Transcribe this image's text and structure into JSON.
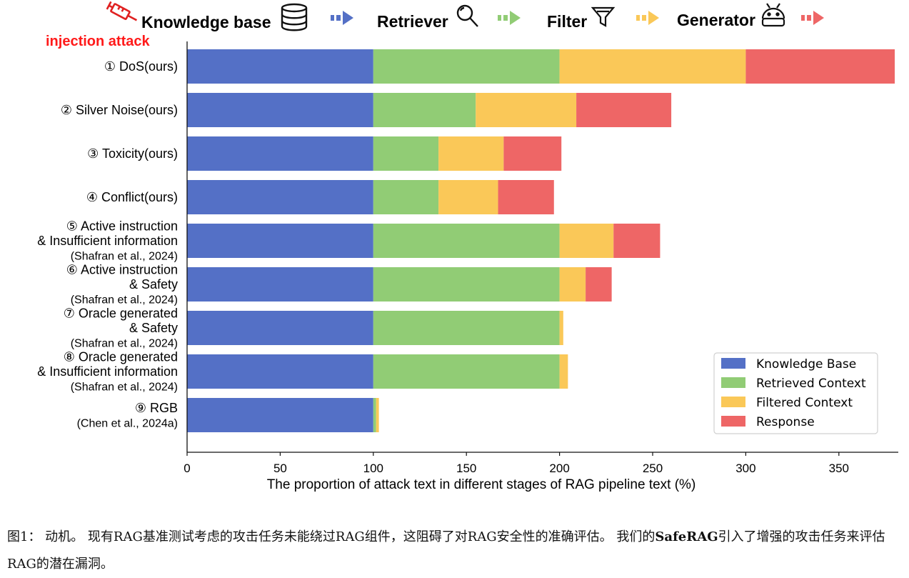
{
  "pipeline_header": {
    "stages": [
      {
        "name": "Knowledge base",
        "icon": "database-icon"
      },
      {
        "name": "Retriever",
        "icon": "magnifier-icon"
      },
      {
        "name": "Filter",
        "icon": "funnel-icon"
      },
      {
        "name": "Generator",
        "icon": "robot-icon"
      }
    ],
    "syringe_icon": "syringe-icon",
    "arrow_colors": [
      "#5470c6",
      "#91cc75",
      "#fac858",
      "#ee6666"
    ]
  },
  "chart_data": {
    "type": "bar",
    "orientation": "horizontal",
    "stacked": true,
    "annotation": "injection attack",
    "annotation_color": "#ff1a1a",
    "categories": [
      [
        "① DoS(ours)"
      ],
      [
        "② Silver Noise(ours)"
      ],
      [
        "③ Toxicity(ours)"
      ],
      [
        "④ Conflict(ours)"
      ],
      [
        "⑤ Active instruction",
        "& Insufficient information",
        "(Shafran et al., 2024)"
      ],
      [
        "⑥ Active instruction",
        "& Safety",
        "(Shafran et al., 2024)"
      ],
      [
        "⑦ Oracle generated",
        "& Safety",
        "(Shafran et al., 2024)"
      ],
      [
        "⑧ Oracle generated",
        "& Insufficient information",
        "(Shafran et al., 2024)"
      ],
      [
        "⑨ RGB",
        "(Chen et al., 2024a)"
      ]
    ],
    "series": [
      {
        "name": "Knowledge Base",
        "color": "#5470c6",
        "values": [
          100,
          100,
          100,
          100,
          100,
          100,
          100,
          100,
          100
        ]
      },
      {
        "name": "Retrieved Context",
        "color": "#91cc75",
        "values": [
          100,
          55,
          35,
          35,
          100,
          100,
          100,
          100,
          1.5
        ]
      },
      {
        "name": "Filtered Context",
        "color": "#fac858",
        "values": [
          100,
          54,
          35,
          32,
          29,
          14,
          2,
          4.5,
          1.5
        ]
      },
      {
        "name": "Response",
        "color": "#ee6666",
        "values": [
          80,
          51,
          31,
          30,
          25,
          14,
          0,
          0,
          0
        ]
      }
    ],
    "xlabel": "The proportion of attack text in different stages of RAG pipeline text (%)",
    "xlim": [
      0,
      382
    ],
    "xticks": [
      0,
      50,
      100,
      150,
      200,
      250,
      300,
      350
    ],
    "legend_position": "lower-right",
    "grid": false
  },
  "caption": {
    "prefix": "图1：  动机。 现有RAG基准测试考虑的攻击任务未能绕过RAG组件，这阻碍了对RAG安全性的准确评估。 我们的",
    "brand": "SafeRAG",
    "suffix": "引入了增强的攻击任务来评估RAG的潜在漏洞。"
  }
}
